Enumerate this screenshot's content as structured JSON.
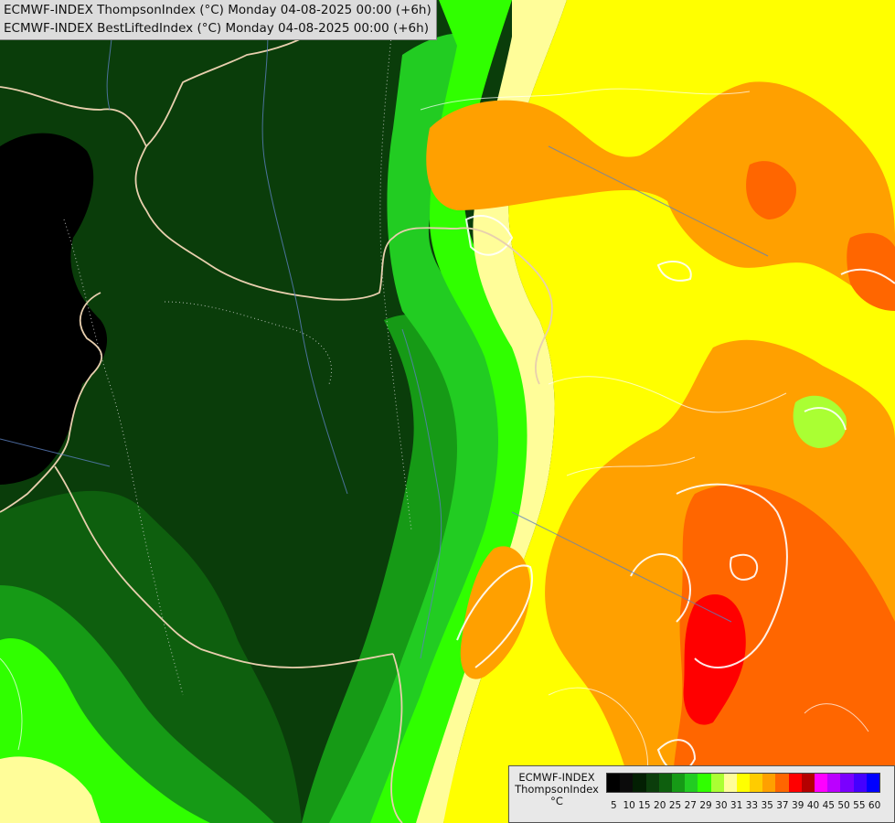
{
  "header": {
    "line1": "ECMWF-INDEX ThompsonIndex (°C) Monday 04-08-2025 00:00 (+6h)",
    "line2": "ECMWF-INDEX BestLiftedIndex (°C) Monday 04-08-2025 00:00 (+6h)"
  },
  "legend": {
    "title_line1": "ECMWF-INDEX",
    "title_line2": "ThompsonIndex",
    "title_line3": "°C",
    "ticks": [
      "5",
      "10",
      "15",
      "20",
      "25",
      "27",
      "29",
      "30",
      "31",
      "33",
      "35",
      "37",
      "39",
      "40",
      "45",
      "50",
      "55",
      "60"
    ],
    "colors": [
      "#000000",
      "#0b0b0b",
      "#031f03",
      "#0b3d0b",
      "#0e5f0e",
      "#169a16",
      "#22cc22",
      "#30ff00",
      "#aaff33",
      "#fffd99",
      "#ffff00",
      "#ffcc00",
      "#ffa000",
      "#ff6600",
      "#ff0000",
      "#b40000",
      "#ff00ff",
      "#bb00ff",
      "#7a00ff",
      "#4400ff",
      "#0000ff"
    ]
  },
  "map_colors": {
    "black": "#000000",
    "darkgreen": "#0a3d0a",
    "medgreen": "#0e5f0e",
    "green": "#169a16",
    "brightgreen": "#22cc22",
    "lime": "#30ff00",
    "lightyellow": "#fffd99",
    "yellow": "#ffff00",
    "orange": "#ffa000",
    "darkorange": "#ff6600",
    "red": "#ff0000"
  },
  "feature_labels": {
    "isoline": "BestLiftedIndex contour",
    "border": "country border",
    "river": "river"
  }
}
